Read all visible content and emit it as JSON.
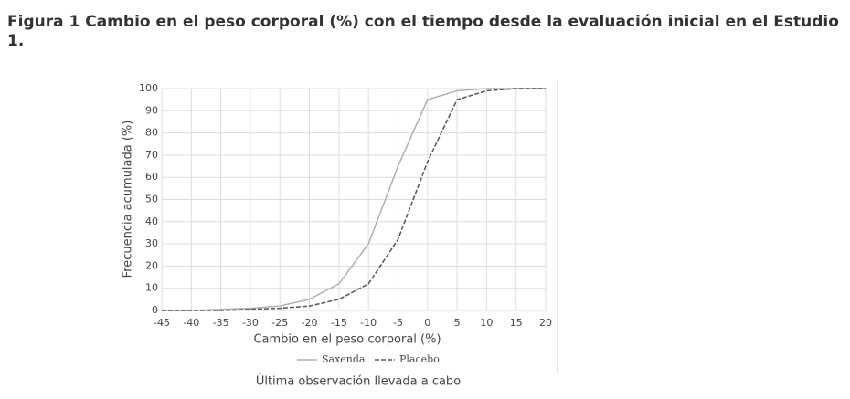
{
  "chart_data": {
    "type": "line",
    "title": "Figura 1 Cambio en el peso corporal (%) con el tiempo desde la evaluación inicial en el Estudio 1.",
    "x_label": "Cambio en el peso corporal (%)",
    "y_label": "Frecuencia acumulada (%)",
    "caption": "Última observación llevada a cabo",
    "x": [
      -45,
      -40,
      -35,
      -30,
      -25,
      -20,
      -15,
      -10,
      -5,
      0,
      5,
      10,
      15,
      20
    ],
    "series": [
      {
        "name": "Saxenda",
        "color": "#b0b0b0",
        "values": [
          0,
          0,
          0.5,
          1,
          2,
          5,
          12,
          30,
          65,
          95,
          99,
          100,
          100,
          100
        ]
      },
      {
        "name": "Placebo",
        "color": "#555555",
        "values": [
          0,
          0,
          0,
          0.5,
          1,
          2,
          5,
          12,
          32,
          67,
          95,
          99,
          100,
          100
        ]
      }
    ],
    "xlim": [
      -45,
      20
    ],
    "xticks": [
      -45,
      -40,
      -35,
      -30,
      -25,
      -20,
      -15,
      -10,
      -5,
      0,
      5,
      10,
      15,
      20
    ],
    "ylim": [
      0,
      100
    ],
    "yticks": [
      0,
      10,
      20,
      30,
      40,
      50,
      60,
      70,
      80,
      90,
      100
    ],
    "grid": true
  }
}
